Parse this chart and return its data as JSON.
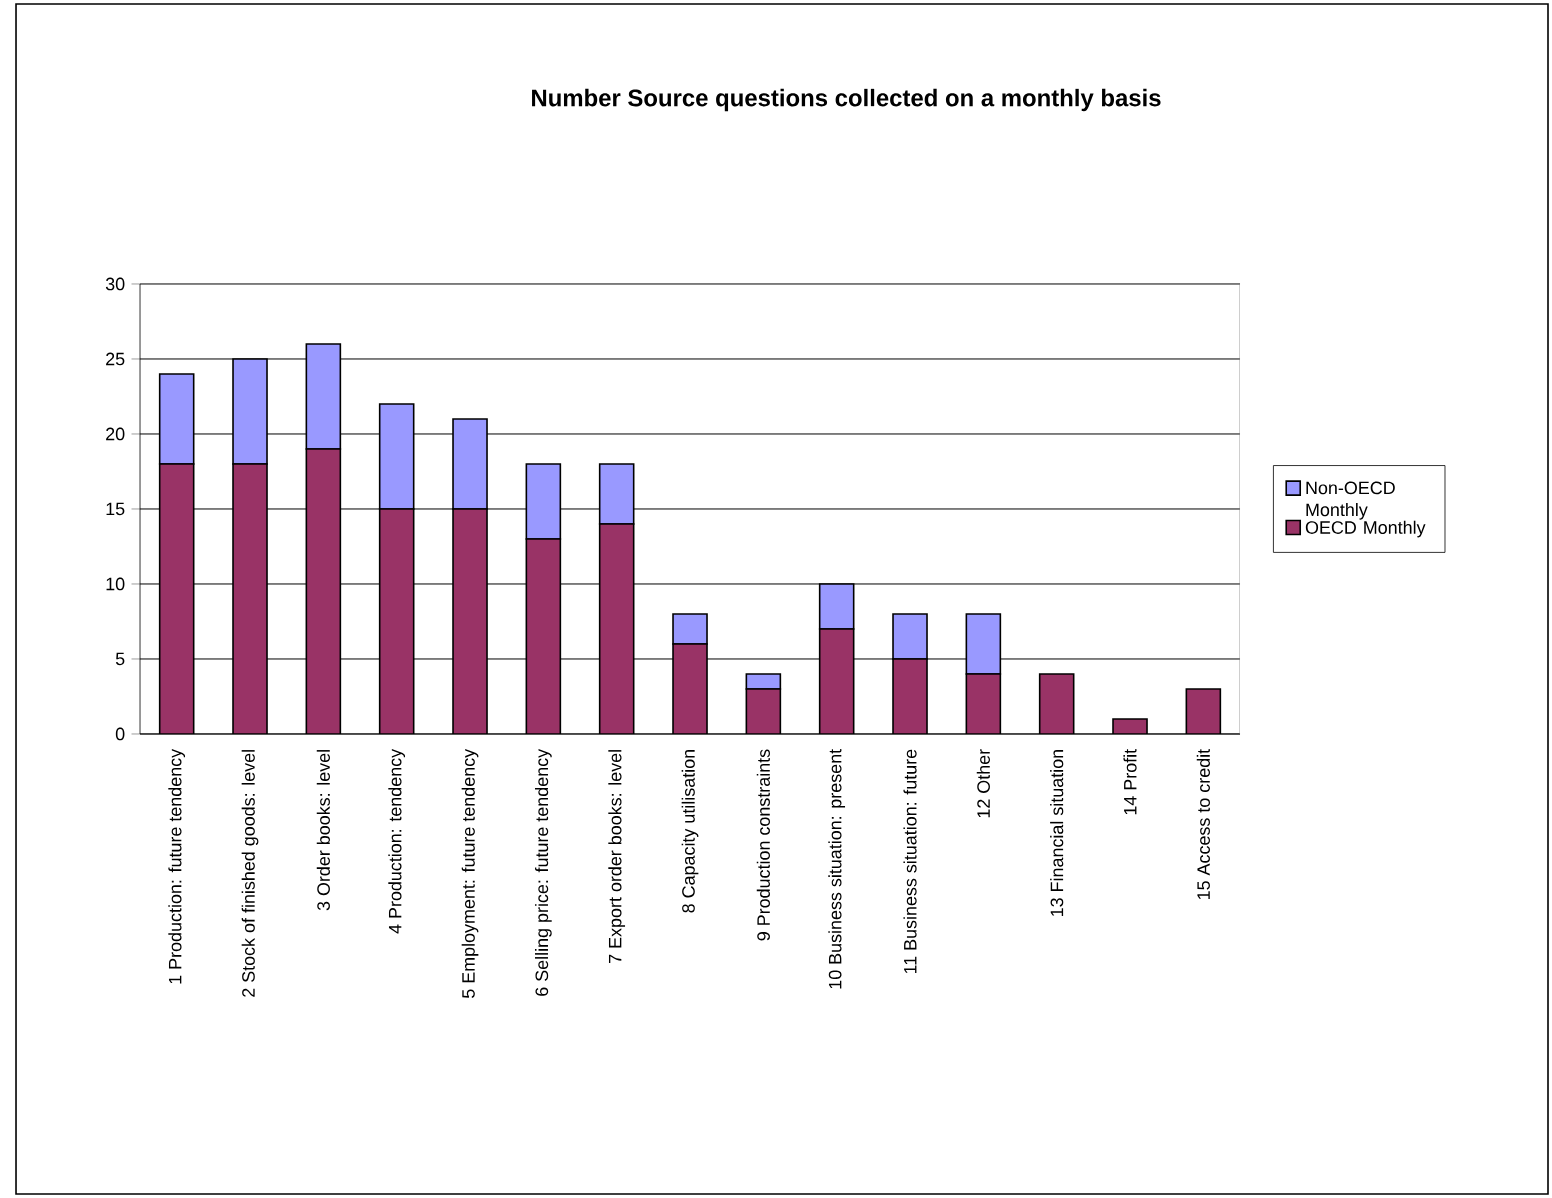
{
  "chart_data": {
    "type": "bar",
    "title": "Number Source questions collected on a monthly basis",
    "categories": [
      "1 Production: future tendency",
      "2 Stock of finished goods: level",
      "3 Order books: level",
      "4 Production: tendency",
      "5 Employment: future tendency",
      "6 Selling price: future tendency",
      "7 Export order books: level",
      "8 Capacity utilisation",
      "9 Production constraints",
      "10 Business situation: present",
      "11 Business situation: future",
      "12 Other",
      "13 Financial situation",
      "14 Profit",
      "15 Access to credit"
    ],
    "stacked": true,
    "series": [
      {
        "name": "OECD Monthly",
        "color": "#993366",
        "values": [
          18,
          18,
          19,
          15,
          15,
          13,
          14,
          6,
          3,
          7,
          5,
          4,
          4,
          1,
          3
        ]
      },
      {
        "name": "Non-OECD Monthly",
        "color": "#9999ff",
        "values": [
          6,
          7,
          7,
          7,
          6,
          5,
          4,
          2,
          1,
          3,
          3,
          4,
          0,
          0,
          0
        ]
      }
    ],
    "ylim": [
      0,
      30
    ],
    "yticks": [
      0,
      5,
      10,
      15,
      20,
      25,
      30
    ],
    "grid": "y",
    "legend": "right"
  }
}
